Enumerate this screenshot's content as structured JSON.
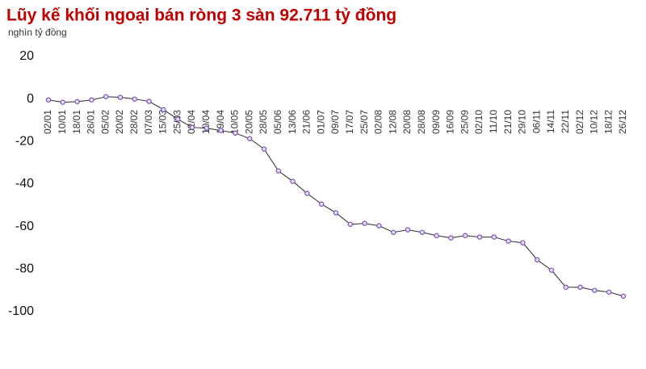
{
  "chart_data": {
    "type": "line",
    "title": "Lũy kế khối ngoại bán ròng 3 sàn 92.711 tỷ đồng",
    "subtitle": "nghìn tỷ đồng",
    "categories": [
      "02/01",
      "10/01",
      "18/01",
      "26/01",
      "05/02",
      "20/02",
      "28/02",
      "07/03",
      "15/03",
      "25/03",
      "02/04",
      "10/04",
      "19/04",
      "10/05",
      "20/05",
      "28/05",
      "05/06",
      "13/06",
      "21/06",
      "01/07",
      "09/07",
      "17/07",
      "25/07",
      "02/08",
      "12/08",
      "20/08",
      "28/08",
      "09/09",
      "16/09",
      "25/09",
      "02/10",
      "11/10",
      "21/10",
      "29/10",
      "06/11",
      "14/11",
      "22/11",
      "02/12",
      "10/12",
      "18/12",
      "26/12"
    ],
    "values": [
      -0.4,
      -1.5,
      -1.2,
      -0.4,
      1.1,
      0.8,
      0,
      -1.1,
      -5,
      -9.5,
      -13.3,
      -13.7,
      -14.8,
      -16,
      -18.6,
      -23.5,
      -33.8,
      -38.7,
      -44.4,
      -49.4,
      -53.5,
      -58.9,
      -58.5,
      -59.6,
      -62.7,
      -61.5,
      -62.7,
      -64.2,
      -65.3,
      -64.2,
      -64.9,
      -64.9,
      -66.8,
      -67.6,
      -75.6,
      -80.5,
      -88.5,
      -88.5,
      -90,
      -90.8,
      -92.7
    ],
    "color": "#7b4fb5",
    "ylim": [
      -100,
      20
    ],
    "yticks": [
      20,
      0,
      -20,
      -40,
      -60,
      -80,
      -100
    ],
    "grid": false
  }
}
